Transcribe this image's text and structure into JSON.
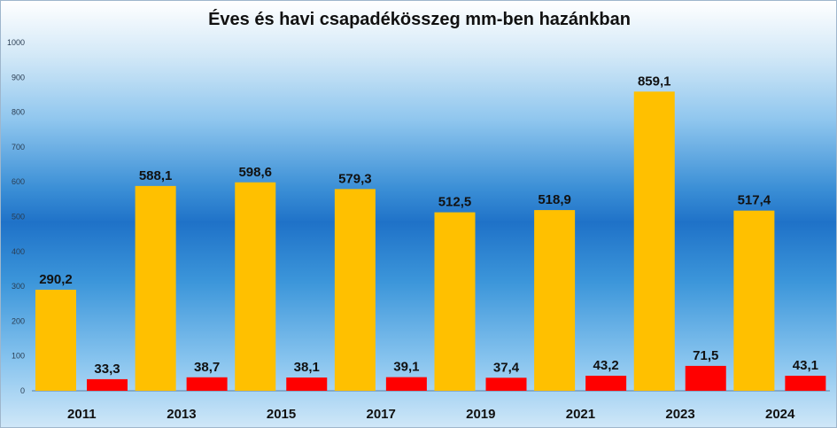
{
  "chart_data": {
    "type": "bar",
    "title": "Éves és havi csapadékösszeg mm-ben hazánkban",
    "xlabel": "",
    "ylabel": "",
    "categories": [
      "2011",
      "2013",
      "2015",
      "2017",
      "2019",
      "2021",
      "2023",
      "2024"
    ],
    "series": [
      {
        "values": [
          290.2,
          588.1,
          598.6,
          579.3,
          512.5,
          518.9,
          859.1,
          517.4
        ],
        "labels": [
          "290,2",
          "588,1",
          "598,6",
          "579,3",
          "512,5",
          "518,9",
          "859,1",
          "517,4"
        ],
        "color": "#ffc000"
      },
      {
        "values": [
          33.3,
          38.7,
          38.1,
          39.1,
          37.4,
          43.2,
          71.5,
          43.1
        ],
        "labels": [
          "33,3",
          "38,7",
          "38,1",
          "39,1",
          "37,4",
          "43,2",
          "71,5",
          "43,1"
        ],
        "color": "#ff0000"
      }
    ],
    "ylim": [
      0,
      1000
    ],
    "yticks": [
      "0",
      "100",
      "200",
      "300",
      "400",
      "500",
      "600",
      "700",
      "800",
      "900",
      "1000"
    ],
    "grid": false,
    "legend": "none"
  }
}
